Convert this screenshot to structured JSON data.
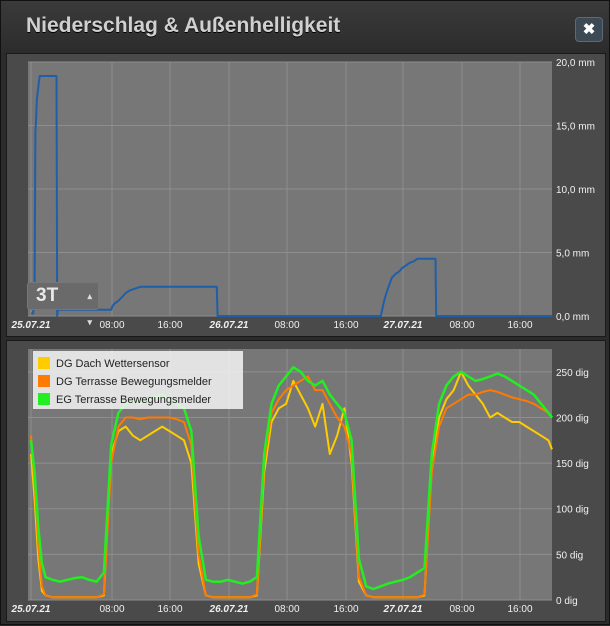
{
  "dialog": {
    "title": "Niederschlag & Außenhelligkeit",
    "close_icon": "close-icon"
  },
  "colors": {
    "rain_line": "#1f5faa",
    "plot_bg": "#777777",
    "dach": "#ffcc00",
    "terrasse_dg": "#ff7a00",
    "eg_terrasse": "#22ee22"
  },
  "range_selector": {
    "value": "3T"
  },
  "x_ticks": [
    "25.07.21",
    "08:00",
    "16:00",
    "26.07.21",
    "08:00",
    "16:00",
    "27.07.21",
    "08:00",
    "16:00"
  ],
  "chart_data": [
    {
      "type": "line",
      "y_unit": "mm",
      "y_ticks": [
        "20,0 mm",
        "15,0 mm",
        "10,0 mm",
        "5,0 mm",
        "0,0 mm"
      ],
      "ylim": [
        0,
        20
      ],
      "x_range_hours": [
        0,
        72
      ],
      "grid": true,
      "series": [
        {
          "x": [
            0,
            0.3,
            0.5,
            0.6,
            0.7,
            0.8,
            1.0,
            1.1,
            1.2,
            1.4,
            1.6,
            1.8,
            2.0,
            3.5,
            3.6,
            3.65,
            3.7,
            4.2,
            11.0,
            11.2,
            11.5,
            12.0,
            12.5,
            13.0,
            13.5,
            14.5,
            15.0,
            25.5,
            25.6,
            48.0,
            48.3,
            48.6,
            49.0,
            49.5,
            50.0,
            50.5,
            51.0,
            51.5,
            52.0,
            52.5,
            53.0,
            55.5,
            55.6,
            72.0
          ],
          "values": [
            0.2,
            0.2,
            2.5,
            14.5,
            15.5,
            17.0,
            18.0,
            18.5,
            18.9,
            18.9,
            18.9,
            18.9,
            18.9,
            18.9,
            0.0,
            0.3,
            0.5,
            0.5,
            0.5,
            0.8,
            1.0,
            1.2,
            1.5,
            1.8,
            2.0,
            2.2,
            2.3,
            2.3,
            0.0,
            0.0,
            0.8,
            1.5,
            2.2,
            3.0,
            3.3,
            3.5,
            3.8,
            4.0,
            4.2,
            4.3,
            4.5,
            4.5,
            0.0,
            0.0
          ]
        }
      ]
    },
    {
      "type": "line",
      "y_unit": "dig",
      "y_ticks": [
        "250 dig",
        "200 dig",
        "150 dig",
        "100 dig",
        "50 dig",
        "0 dig"
      ],
      "ylim": [
        0,
        275
      ],
      "x_range_hours": [
        0,
        72
      ],
      "legend": "top-left",
      "grid": true,
      "series": [
        {
          "name": "DG Dach Wettersensor",
          "x": [
            0,
            0.5,
            1,
            1.5,
            2,
            3,
            4,
            5,
            6,
            7,
            8,
            9,
            10,
            11,
            12,
            13,
            14,
            15,
            16,
            17,
            18,
            19,
            20,
            21,
            22,
            23,
            24,
            25,
            26,
            27,
            28,
            29,
            30,
            31,
            32,
            33,
            34,
            35,
            36,
            37,
            38,
            39,
            40,
            41,
            42,
            43,
            44,
            45,
            46,
            47,
            48,
            49,
            50,
            51,
            52,
            53,
            54,
            55,
            56,
            57,
            58,
            59,
            60,
            61,
            62,
            63,
            64,
            65,
            66,
            67,
            68,
            69,
            70,
            71,
            72
          ],
          "values": [
            160,
            110,
            45,
            10,
            5,
            3,
            3,
            3,
            3,
            3,
            3,
            3,
            5,
            160,
            185,
            190,
            180,
            175,
            180,
            185,
            190,
            185,
            180,
            175,
            150,
            40,
            5,
            3,
            3,
            3,
            3,
            3,
            3,
            5,
            140,
            195,
            210,
            215,
            240,
            225,
            210,
            190,
            215,
            160,
            180,
            210,
            150,
            20,
            5,
            3,
            3,
            3,
            3,
            3,
            3,
            3,
            5,
            150,
            200,
            220,
            230,
            250,
            235,
            225,
            215,
            200,
            205,
            200,
            195,
            195,
            190,
            185,
            180,
            175,
            165
          ]
        },
        {
          "name": "DG Terrasse Bewegungsmelder",
          "x": [
            0,
            0.5,
            1,
            1.5,
            2,
            3,
            4,
            5,
            6,
            7,
            8,
            9,
            10,
            11,
            12,
            13,
            14,
            15,
            16,
            17,
            18,
            19,
            20,
            21,
            22,
            23,
            24,
            25,
            26,
            27,
            28,
            29,
            30,
            31,
            32,
            33,
            34,
            35,
            36,
            37,
            38,
            39,
            40,
            41,
            42,
            43,
            44,
            45,
            46,
            47,
            48,
            49,
            50,
            51,
            52,
            53,
            54,
            55,
            56,
            57,
            58,
            59,
            60,
            61,
            62,
            63,
            64,
            65,
            66,
            67,
            68,
            69,
            70,
            71,
            72
          ],
          "values": [
            180,
            130,
            60,
            15,
            5,
            3,
            3,
            3,
            3,
            3,
            3,
            3,
            6,
            150,
            190,
            200,
            200,
            198,
            200,
            200,
            200,
            200,
            198,
            195,
            170,
            50,
            5,
            3,
            3,
            3,
            3,
            3,
            3,
            6,
            150,
            205,
            220,
            230,
            235,
            240,
            245,
            230,
            230,
            215,
            200,
            190,
            160,
            25,
            5,
            3,
            3,
            3,
            3,
            3,
            3,
            3,
            6,
            140,
            190,
            210,
            215,
            220,
            225,
            225,
            228,
            230,
            228,
            225,
            222,
            220,
            218,
            215,
            210,
            205,
            200
          ]
        },
        {
          "name": "EG Terrasse Bewegungsmelder",
          "x": [
            0,
            0.5,
            1,
            1.5,
            2,
            3,
            4,
            5,
            6,
            7,
            8,
            9,
            10,
            11,
            12,
            13,
            14,
            15,
            16,
            17,
            18,
            19,
            20,
            21,
            22,
            23,
            24,
            25,
            26,
            27,
            28,
            29,
            30,
            31,
            32,
            33,
            34,
            35,
            36,
            37,
            38,
            39,
            40,
            41,
            42,
            43,
            44,
            45,
            46,
            47,
            48,
            49,
            50,
            51,
            52,
            53,
            54,
            55,
            56,
            57,
            58,
            59,
            60,
            61,
            62,
            63,
            64,
            65,
            66,
            67,
            68,
            69,
            70,
            71,
            72
          ],
          "values": [
            175,
            140,
            80,
            40,
            25,
            22,
            20,
            22,
            24,
            25,
            22,
            20,
            30,
            170,
            205,
            215,
            218,
            215,
            220,
            222,
            225,
            220,
            215,
            210,
            185,
            70,
            22,
            20,
            20,
            22,
            20,
            18,
            20,
            25,
            160,
            215,
            235,
            245,
            255,
            250,
            240,
            235,
            240,
            225,
            215,
            205,
            175,
            45,
            15,
            12,
            15,
            18,
            20,
            22,
            25,
            30,
            35,
            160,
            215,
            235,
            245,
            250,
            245,
            240,
            242,
            245,
            248,
            245,
            240,
            235,
            230,
            225,
            215,
            205,
            200
          ]
        }
      ]
    }
  ]
}
